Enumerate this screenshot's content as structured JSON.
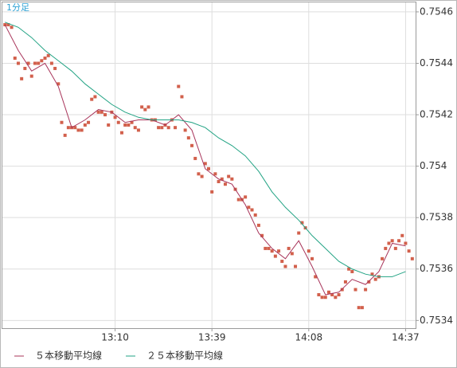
{
  "chart_data": {
    "type": "line",
    "title": "1分足",
    "xlim": [
      756,
      880
    ],
    "xticks": [
      {
        "value": 790,
        "label": "13:10"
      },
      {
        "value": 819,
        "label": "13:39"
      },
      {
        "value": 848,
        "label": "14:08"
      },
      {
        "value": 877,
        "label": "14:37"
      }
    ],
    "ylim": [
      0.75337,
      0.75464
    ],
    "yticks": [
      0.7534,
      0.7536,
      0.7538,
      0.754,
      0.7542,
      0.7544,
      0.7546
    ],
    "grid": true,
    "legend": "bottom",
    "series": [
      {
        "style": "scatter",
        "color": "#d2604c",
        "x": [
          757,
          758,
          759,
          760,
          761,
          762,
          763,
          764,
          765,
          766,
          767,
          768,
          769,
          770,
          771,
          772,
          773,
          774,
          775,
          776,
          777,
          778,
          779,
          780,
          781,
          782,
          783,
          784,
          785,
          786,
          787,
          788,
          789,
          790,
          791,
          792,
          793,
          794,
          795,
          796,
          797,
          798,
          799,
          800,
          801,
          802,
          803,
          804,
          805,
          806,
          807,
          808,
          809,
          810,
          811,
          812,
          813,
          814,
          815,
          816,
          817,
          818,
          819,
          820,
          821,
          822,
          823,
          824,
          825,
          826,
          827,
          828,
          829,
          830,
          831,
          832,
          833,
          834,
          835,
          836,
          837,
          838,
          839,
          840,
          841,
          842,
          843,
          844,
          845,
          846,
          847,
          848,
          849,
          850,
          851,
          852,
          853,
          854,
          855,
          856,
          857,
          858,
          859,
          860,
          861,
          862,
          863,
          864,
          865,
          866,
          867,
          868,
          869,
          870,
          871,
          872,
          873,
          874,
          875,
          876,
          877,
          878,
          879
        ],
        "values": [
          0.75455,
          0.75455,
          0.75454,
          0.75442,
          0.7544,
          0.75434,
          0.75438,
          0.7544,
          0.75435,
          0.7544,
          0.7544,
          0.75441,
          0.75442,
          0.75443,
          0.7544,
          0.75438,
          0.75432,
          0.75417,
          0.75412,
          0.75415,
          0.75415,
          0.75415,
          0.75414,
          0.75414,
          0.75416,
          0.75417,
          0.75426,
          0.75427,
          0.75421,
          0.75421,
          0.7542,
          0.75416,
          0.75421,
          0.75419,
          0.75417,
          0.75413,
          0.75416,
          0.75416,
          0.75417,
          0.75415,
          0.75414,
          0.75423,
          0.75422,
          0.75423,
          0.75418,
          0.75418,
          0.75415,
          0.75415,
          0.75416,
          0.75415,
          0.75418,
          0.75415,
          0.75431,
          0.75427,
          0.75414,
          0.75411,
          0.75408,
          0.75403,
          0.75397,
          0.75396,
          0.75401,
          0.75399,
          0.7539,
          0.75397,
          0.75394,
          0.75395,
          0.75393,
          0.75396,
          0.75395,
          0.75391,
          0.75387,
          0.75387,
          0.75388,
          0.75384,
          0.75383,
          0.75381,
          0.75377,
          0.75373,
          0.75368,
          0.75368,
          0.75367,
          0.75365,
          0.75367,
          0.75363,
          0.75361,
          0.75368,
          0.75366,
          0.75361,
          0.75374,
          0.75378,
          0.75376,
          0.75367,
          0.75364,
          0.75357,
          0.7535,
          0.75349,
          0.75349,
          0.75351,
          0.7535,
          0.75349,
          0.7535,
          0.75352,
          0.75355,
          0.7536,
          0.75359,
          0.75352,
          0.75345,
          0.75345,
          0.75352,
          0.75355,
          0.75358,
          0.75356,
          0.75357,
          0.75364,
          0.75368,
          0.7537,
          0.75371,
          0.75368,
          0.75371,
          0.75373,
          0.7537,
          0.75367,
          0.75364
        ]
      },
      {
        "style": "line",
        "name": "５本移動平均線",
        "color": "#a8345a",
        "x": [
          757,
          761,
          765,
          769,
          773,
          777,
          781,
          785,
          789,
          793,
          797,
          801,
          805,
          809,
          813,
          817,
          821,
          825,
          829,
          833,
          837,
          841,
          845,
          849,
          853,
          857,
          861,
          865,
          869,
          873,
          877
        ],
        "values": [
          0.75455,
          0.75445,
          0.75437,
          0.7544,
          0.75431,
          0.75415,
          0.75418,
          0.75422,
          0.75421,
          0.75417,
          0.75418,
          0.75418,
          0.75416,
          0.7542,
          0.75414,
          0.75399,
          0.75395,
          0.75393,
          0.75385,
          0.75374,
          0.75368,
          0.75364,
          0.75371,
          0.75361,
          0.7535,
          0.75351,
          0.75356,
          0.75354,
          0.75359,
          0.7537,
          0.75369
        ]
      },
      {
        "style": "line",
        "name": "２５本移動平均線",
        "color": "#22a384",
        "x": [
          757,
          761,
          765,
          769,
          773,
          777,
          781,
          785,
          789,
          793,
          797,
          801,
          805,
          809,
          813,
          817,
          821,
          825,
          829,
          833,
          837,
          841,
          845,
          849,
          853,
          857,
          861,
          865,
          869,
          873,
          877
        ],
        "values": [
          0.75456,
          0.75454,
          0.7545,
          0.75445,
          0.75441,
          0.75437,
          0.75432,
          0.75428,
          0.75424,
          0.75421,
          0.75419,
          0.75418,
          0.75418,
          0.75418,
          0.75417,
          0.75415,
          0.75411,
          0.75408,
          0.75404,
          0.75398,
          0.7539,
          0.75384,
          0.75379,
          0.75373,
          0.75368,
          0.75363,
          0.7536,
          0.75358,
          0.75357,
          0.75357,
          0.75359
        ]
      }
    ]
  }
}
